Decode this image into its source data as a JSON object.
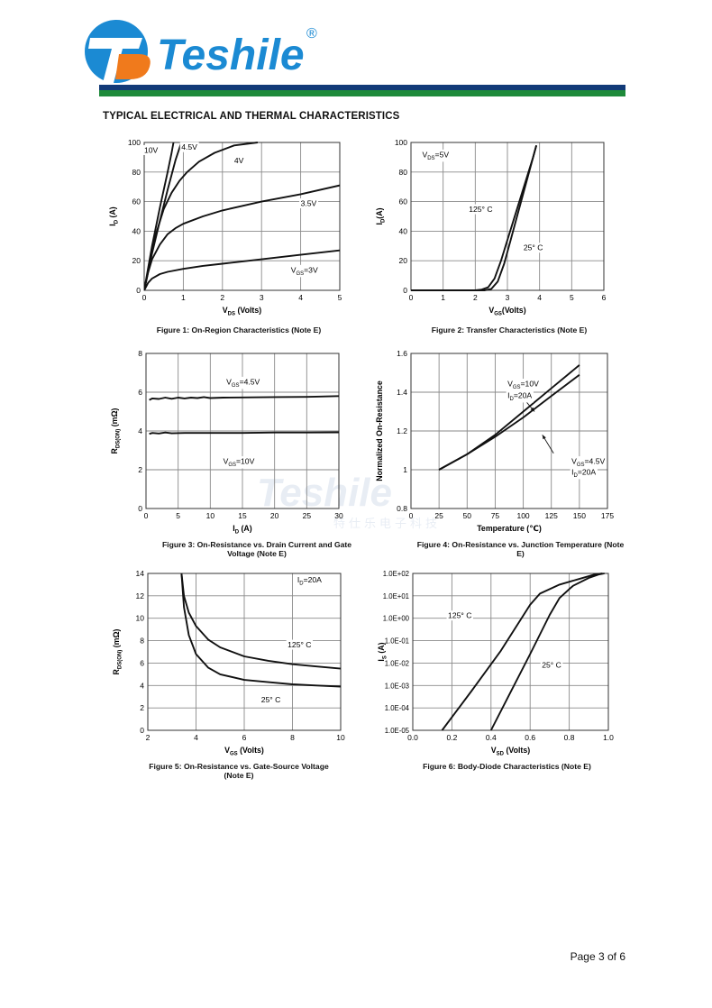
{
  "header": {
    "brand": "Teshile",
    "registered_mark": "®",
    "section_title": "TYPICAL ELECTRICAL AND THERMAL CHARACTERISTICS",
    "colors": {
      "logo_blue": "#1b8ad3",
      "logo_orange": "#f07a1c",
      "bar_navy": "#123a78",
      "bar_green": "#1e8a3a"
    }
  },
  "watermark": {
    "text": "Teshile",
    "subtext": "特仕乐电子科技"
  },
  "footer": {
    "page": "Page 3 of 6"
  },
  "chart_data": [
    {
      "id": "fig1",
      "type": "line",
      "title": "Figure 1: On-Region Characteristics (Note E)",
      "xlabel": {
        "main": "V",
        "sub": "DS",
        "rest": " (Volts)"
      },
      "ylabel": {
        "main": "I",
        "sub": "D",
        "rest": " (A)"
      },
      "xlim": [
        0,
        5
      ],
      "ylim": [
        0,
        100
      ],
      "xticks": [
        "0",
        "1",
        "2",
        "3",
        "4",
        "5"
      ],
      "yticks": [
        "0",
        "20",
        "40",
        "60",
        "80",
        "100"
      ],
      "series": [
        {
          "name": "10V",
          "x": [
            0,
            0.2,
            0.4,
            0.6,
            0.7,
            0.75
          ],
          "y": [
            0,
            30,
            56,
            80,
            93,
            100
          ]
        },
        {
          "name": "4.5V",
          "x": [
            0,
            0.2,
            0.4,
            0.6,
            0.8,
            0.95
          ],
          "y": [
            0,
            25,
            47,
            68,
            88,
            100
          ]
        },
        {
          "name": "4V",
          "x": [
            0,
            0.15,
            0.3,
            0.5,
            0.7,
            0.9,
            1.1,
            1.4,
            1.8,
            2.3,
            2.9
          ],
          "y": [
            0,
            20,
            38,
            55,
            66,
            74,
            80,
            87,
            93,
            98,
            100
          ]
        },
        {
          "name": "3.5V",
          "x": [
            0,
            0.1,
            0.2,
            0.4,
            0.6,
            0.8,
            1,
            1.5,
            2,
            3,
            4,
            5
          ],
          "y": [
            0,
            12,
            21,
            31,
            38,
            42,
            45,
            50,
            54,
            60,
            65,
            71
          ]
        },
        {
          "name": "VGS=3V",
          "x": [
            0,
            0.1,
            0.2,
            0.4,
            0.6,
            1,
            1.5,
            2,
            3,
            4,
            5
          ],
          "y": [
            0,
            5,
            8,
            11,
            12.5,
            14.5,
            16.5,
            18,
            21,
            24,
            27
          ]
        }
      ],
      "labels": [
        {
          "text": "10V",
          "x": 0.0,
          "y": 93
        },
        {
          "text": "4.5V",
          "x": 0.95,
          "y": 95
        },
        {
          "text": "4V",
          "x": 2.3,
          "y": 86
        },
        {
          "text": "3.5V",
          "x": 4.0,
          "y": 57
        },
        {
          "main": "V",
          "sub": "GS",
          "rest": "=3V",
          "x": 3.75,
          "y": 12
        }
      ]
    },
    {
      "id": "fig2",
      "type": "line",
      "title": "Figure 2: Transfer Characteristics (Note E)",
      "xlabel": {
        "main": "V",
        "sub": "GS",
        "rest": "(Volts)"
      },
      "ylabel": {
        "main": "I",
        "sub": "D",
        "rest": "(A)"
      },
      "xlim": [
        0,
        6
      ],
      "ylim": [
        0,
        100
      ],
      "xticks": [
        "0",
        "1",
        "2",
        "3",
        "4",
        "5",
        "6"
      ],
      "yticks": [
        "0",
        "20",
        "40",
        "60",
        "80",
        "100"
      ],
      "series": [
        {
          "name": "125° C",
          "x": [
            0,
            2.0,
            2.2,
            2.4,
            2.6,
            2.8,
            3.0,
            3.2,
            3.5,
            3.8,
            3.9
          ],
          "y": [
            0,
            0,
            0.5,
            2,
            8,
            20,
            34,
            48,
            69,
            90,
            98
          ]
        },
        {
          "name": "25° C",
          "x": [
            0,
            2.3,
            2.5,
            2.7,
            2.9,
            3.1,
            3.3,
            3.6,
            3.9
          ],
          "y": [
            0,
            0,
            1,
            6,
            18,
            34,
            50,
            74,
            98
          ]
        }
      ],
      "labels": [
        {
          "main": "V",
          "sub": "DS",
          "rest": "=5V",
          "x": 0.35,
          "y": 90
        },
        {
          "text": "125° C",
          "x": 1.8,
          "y": 53
        },
        {
          "text": "25° C",
          "x": 3.5,
          "y": 27
        }
      ]
    },
    {
      "id": "fig3",
      "type": "line",
      "title": "Figure 3: On-Resistance vs. Drain Current and Gate Voltage (Note E)",
      "xlabel": {
        "main": "I",
        "sub": "D",
        "rest": " (A)"
      },
      "ylabel": {
        "main": "R",
        "sub": "DS(ON)",
        "rest": " (mΩ)"
      },
      "xlim": [
        0,
        30
      ],
      "ylim": [
        0,
        8
      ],
      "xticks": [
        "0",
        "5",
        "10",
        "15",
        "20",
        "25",
        "30"
      ],
      "yticks": [
        "0",
        "2",
        "4",
        "6",
        "8"
      ],
      "series": [
        {
          "name": "VGS=4.5V",
          "x": [
            0.5,
            1,
            2,
            3,
            4,
            5,
            6,
            7,
            8,
            9,
            10,
            12,
            15,
            20,
            25,
            30
          ],
          "y": [
            5.6,
            5.68,
            5.65,
            5.72,
            5.66,
            5.72,
            5.68,
            5.72,
            5.7,
            5.75,
            5.7,
            5.72,
            5.73,
            5.75,
            5.76,
            5.8
          ]
        },
        {
          "name": "VGS=10V",
          "x": [
            0.5,
            1,
            2,
            3,
            4,
            6,
            8,
            10,
            15,
            20,
            25,
            30
          ],
          "y": [
            3.85,
            3.9,
            3.87,
            3.92,
            3.88,
            3.9,
            3.9,
            3.9,
            3.9,
            3.92,
            3.92,
            3.93
          ]
        }
      ],
      "labels": [
        {
          "main": "V",
          "sub": "GS",
          "rest": "=4.5V",
          "x": 12.5,
          "y": 6.4
        },
        {
          "main": "V",
          "sub": "GS",
          "rest": "=10V",
          "x": 12.0,
          "y": 2.3
        }
      ]
    },
    {
      "id": "fig4",
      "type": "line",
      "title": "Figure 4: On-Resistance vs. Junction Temperature (Note E)",
      "xlabel": {
        "main": "Temperature (℃)",
        "sub": "",
        "rest": ""
      },
      "ylabel": {
        "main": "Normalized On-Resistance",
        "sub": "",
        "rest": ""
      },
      "xlim": [
        0,
        175
      ],
      "ylim": [
        0.8,
        1.6
      ],
      "xticks": [
        "0",
        "25",
        "50",
        "75",
        "100",
        "125",
        "150",
        "175"
      ],
      "yticks": [
        "0.8",
        "1",
        "1.2",
        "1.4",
        "1.6"
      ],
      "series": [
        {
          "name": "VGS=10V ID=20A",
          "x": [
            25,
            50,
            75,
            100,
            125,
            150
          ],
          "y": [
            1.0,
            1.08,
            1.18,
            1.3,
            1.42,
            1.54
          ]
        },
        {
          "name": "VGS=4.5V ID=20A",
          "x": [
            25,
            50,
            75,
            100,
            125,
            150
          ],
          "y": [
            1.0,
            1.08,
            1.17,
            1.27,
            1.38,
            1.49
          ]
        }
      ],
      "labels": [
        {
          "main": "V",
          "sub": "GS",
          "rest": "=10V",
          "x": 86,
          "y": 1.43
        },
        {
          "main": "I",
          "sub": "D",
          "rest": "=20A",
          "x": 86,
          "y": 1.37
        },
        {
          "main": "V",
          "sub": "GS",
          "rest": "=4.5V",
          "x": 143,
          "y": 1.03
        },
        {
          "main": "I",
          "sub": "D",
          "rest": "=20A",
          "x": 143,
          "y": 0.975
        }
      ],
      "arrows": [
        {
          "from": [
            97,
            1.39
          ],
          "to": [
            110,
            1.3
          ]
        },
        {
          "from": [
            127,
            1.085
          ],
          "to": [
            117,
            1.18
          ]
        }
      ]
    },
    {
      "id": "fig5",
      "type": "line",
      "title": "Figure 5: On-Resistance vs. Gate-Source Voltage (Note E)",
      "xlabel": {
        "main": "V",
        "sub": "GS",
        "rest": " (Volts)"
      },
      "ylabel": {
        "main": "R",
        "sub": "DS(ON)",
        "rest": " (mΩ)"
      },
      "xlim": [
        2,
        10
      ],
      "ylim": [
        0,
        14
      ],
      "xticks": [
        "2",
        "4",
        "6",
        "8",
        "10"
      ],
      "yticks": [
        "0",
        "2",
        "4",
        "6",
        "8",
        "10",
        "12",
        "14"
      ],
      "series": [
        {
          "name": "125° C",
          "x": [
            3.4,
            3.5,
            3.7,
            4,
            4.5,
            5,
            6,
            7,
            8,
            9,
            10
          ],
          "y": [
            14,
            12,
            10.5,
            9.3,
            8.1,
            7.4,
            6.6,
            6.2,
            5.9,
            5.7,
            5.5
          ]
        },
        {
          "name": "25° C",
          "x": [
            3.4,
            3.5,
            3.7,
            4,
            4.5,
            5,
            6,
            7,
            8,
            9,
            10
          ],
          "y": [
            14,
            11,
            8.5,
            6.8,
            5.6,
            5.0,
            4.5,
            4.3,
            4.1,
            4.0,
            3.9
          ]
        }
      ],
      "labels": [
        {
          "main": "I",
          "sub": "D",
          "rest": "=20A",
          "x": 8.2,
          "y": 13.2
        },
        {
          "text": "125° C",
          "x": 7.8,
          "y": 7.4
        },
        {
          "text": "25° C",
          "x": 6.7,
          "y": 2.5
        }
      ]
    },
    {
      "id": "fig6",
      "type": "line",
      "title": "Figure 6: Body-Diode Characteristics (Note E)",
      "xlabel": {
        "main": "V",
        "sub": "SD",
        "rest": " (Volts)"
      },
      "ylabel": {
        "main": "I",
        "sub": "S",
        "rest": " (A)"
      },
      "xlim": [
        0,
        1
      ],
      "ylim": [
        -5,
        2
      ],
      "yscale": "log10",
      "xticks": [
        "0.0",
        "0.2",
        "0.4",
        "0.6",
        "0.8",
        "1.0"
      ],
      "yticks": [
        "1.0E-05",
        "1.0E-04",
        "1.0E-03",
        "1.0E-02",
        "1.0E-01",
        "1.0E+00",
        "1.0E+01",
        "1.0E+02"
      ],
      "series": [
        {
          "name": "125° C",
          "x": [
            0.15,
            0.3,
            0.45,
            0.6,
            0.65,
            0.75,
            0.85,
            0.93,
            0.97
          ],
          "y": [
            -5,
            -3.25,
            -1.45,
            0.6,
            1.1,
            1.5,
            1.75,
            1.95,
            2.0
          ]
        },
        {
          "name": "25° C",
          "x": [
            0.4,
            0.5,
            0.6,
            0.7,
            0.75,
            0.8,
            0.82,
            0.9,
            0.95,
            0.98
          ],
          "y": [
            -5,
            -3.3,
            -1.6,
            0.15,
            0.9,
            1.3,
            1.45,
            1.8,
            1.95,
            2.0
          ]
        }
      ],
      "labels": [
        {
          "text": "125° C",
          "x": 0.18,
          "y": 0.0
        },
        {
          "text": "25° C",
          "x": 0.66,
          "y": -2.2
        }
      ]
    }
  ]
}
